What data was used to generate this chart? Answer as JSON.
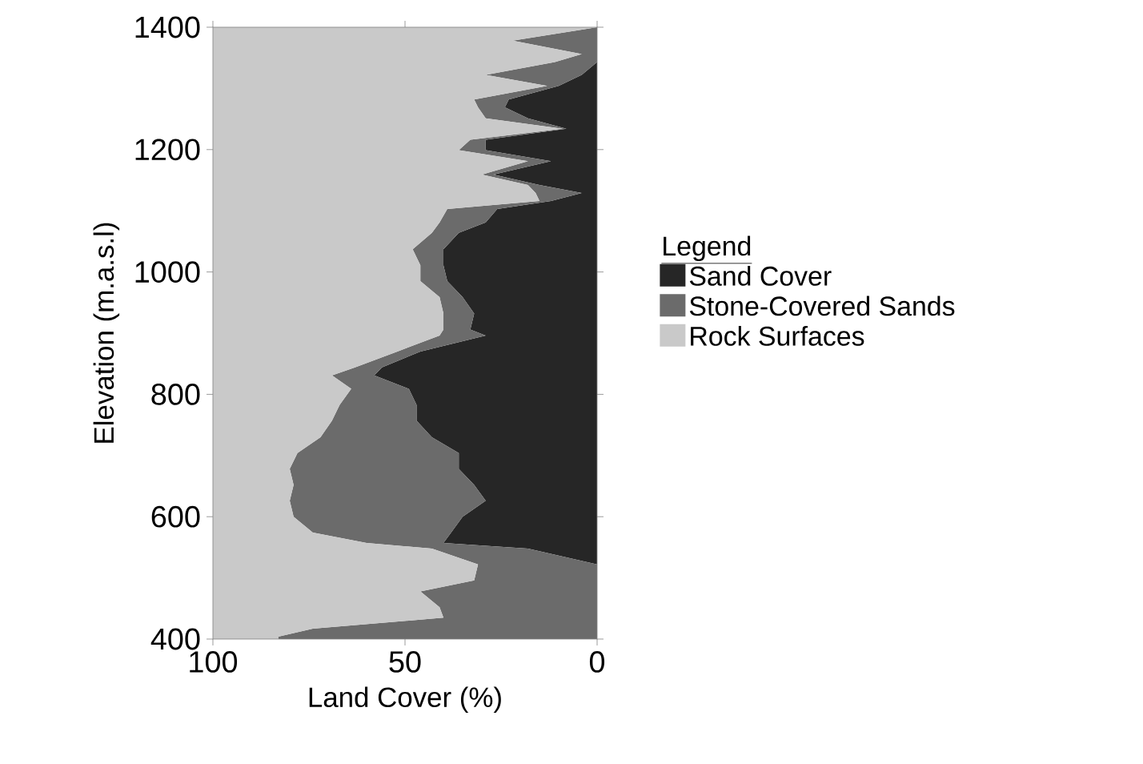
{
  "chart_data": {
    "type": "area",
    "stacked": true,
    "orientation": "horizontal",
    "xlabel": "Land Cover (%)",
    "ylabel": "Elevation (m.a.s.l)",
    "legend_title": "Legend",
    "legend": "right",
    "x": [
      400,
      404,
      417,
      435,
      452,
      478,
      496,
      522,
      548,
      557,
      574,
      600,
      626,
      652,
      678,
      704,
      730,
      757,
      783,
      809,
      831,
      844,
      870,
      896,
      906,
      932,
      959,
      985,
      1011,
      1037,
      1064,
      1081,
      1103,
      1116,
      1129,
      1142,
      1159,
      1181,
      1199,
      1216,
      1234,
      1251,
      1269,
      1282,
      1304,
      1322,
      1343,
      1356,
      1378,
      1400
    ],
    "series": [
      {
        "name": "Sand Cover",
        "color": "#262626",
        "values": [
          0,
          0,
          0,
          0,
          0,
          0,
          0,
          0,
          18,
          40,
          38,
          35,
          29,
          32,
          36,
          36,
          43,
          47,
          47,
          49,
          58,
          56,
          46,
          29,
          33,
          32,
          35,
          39,
          40,
          40,
          36,
          29,
          26,
          12,
          4,
          15,
          27,
          12,
          29,
          29,
          8,
          18,
          24,
          23,
          10,
          4,
          0,
          0,
          0,
          0
        ]
      },
      {
        "name": "Stone-Covered Sands",
        "color": "#6b6b6b",
        "values": [
          83,
          83,
          74,
          40,
          41,
          46,
          32,
          31,
          25,
          20,
          36,
          44,
          51,
          47,
          44,
          42,
          29,
          22,
          20,
          15,
          11,
          7,
          6,
          12,
          7,
          8,
          6,
          7,
          6,
          8,
          7,
          12,
          13,
          3,
          12,
          3,
          3,
          6,
          7,
          4,
          1,
          11,
          7,
          9,
          3,
          25,
          11,
          4,
          22,
          0
        ]
      },
      {
        "name": "Rock Surfaces",
        "color": "#c9c9c9",
        "values": [
          17,
          17,
          26,
          60,
          59,
          54,
          68,
          69,
          57,
          40,
          26,
          21,
          20,
          21,
          20,
          22,
          28,
          31,
          33,
          36,
          31,
          37,
          48,
          59,
          60,
          60,
          59,
          54,
          54,
          52,
          57,
          59,
          61,
          85,
          84,
          82,
          70,
          82,
          64,
          67,
          91,
          71,
          69,
          68,
          87,
          71,
          89,
          96,
          78,
          100
        ]
      }
    ],
    "xlim": [
      100,
      0
    ],
    "xticks": [
      100,
      50,
      0
    ],
    "ylim": [
      400,
      1400
    ],
    "yticks": [
      400,
      600,
      800,
      1000,
      1200,
      1400
    ]
  }
}
